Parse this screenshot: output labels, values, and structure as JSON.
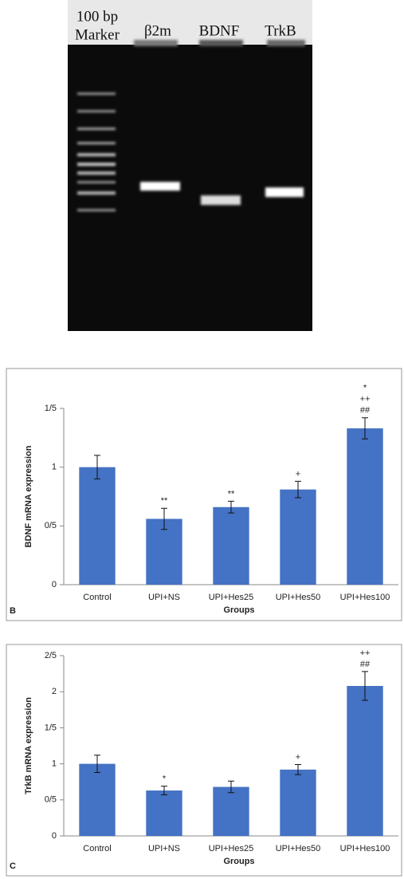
{
  "gel": {
    "labels": [
      "100 bp",
      "Marker",
      "β2m",
      "BDNF",
      "TrkB"
    ]
  },
  "chart_data": [
    {
      "type": "bar",
      "panel_label": "B",
      "ylabel": "BDNF mRNA expression",
      "xlabel": "Groups",
      "categories": [
        "Control",
        "UPI+NS",
        "UPI+Hes25",
        "UPI+Hes50",
        "UPI+Hes100"
      ],
      "values": [
        1.0,
        0.56,
        0.66,
        0.81,
        1.33
      ],
      "errors": [
        0.1,
        0.09,
        0.05,
        0.07,
        0.09
      ],
      "annotations": [
        [],
        [
          "**"
        ],
        [
          "**"
        ],
        [
          "+"
        ],
        [
          "*",
          "++",
          "##"
        ]
      ],
      "color": "#4472c4",
      "ylim": [
        0,
        1.5
      ],
      "yticks": [
        0,
        {
          "value": 0.5,
          "label": "0/5"
        },
        1,
        {
          "value": 1.5,
          "label": "1/5"
        }
      ]
    },
    {
      "type": "bar",
      "panel_label": "C",
      "ylabel": "TrkB mRNA expression",
      "xlabel": "Groups",
      "categories": [
        "Control",
        "UPI+NS",
        "UPI+Hes25",
        "UPI+Hes50",
        "UPI+Hes100"
      ],
      "values": [
        1.0,
        0.63,
        0.68,
        0.92,
        2.08
      ],
      "errors": [
        0.12,
        0.06,
        0.08,
        0.07,
        0.2
      ],
      "annotations": [
        [],
        [
          "*"
        ],
        [],
        [
          "+"
        ],
        [
          "++",
          "##"
        ]
      ],
      "color": "#4472c4",
      "ylim": [
        0,
        2.5
      ],
      "yticks": [
        0,
        {
          "value": 0.5,
          "label": "0/5"
        },
        1,
        {
          "value": 1.5,
          "label": "1/5"
        },
        2,
        {
          "value": 2.5,
          "label": "2/5"
        }
      ]
    }
  ]
}
